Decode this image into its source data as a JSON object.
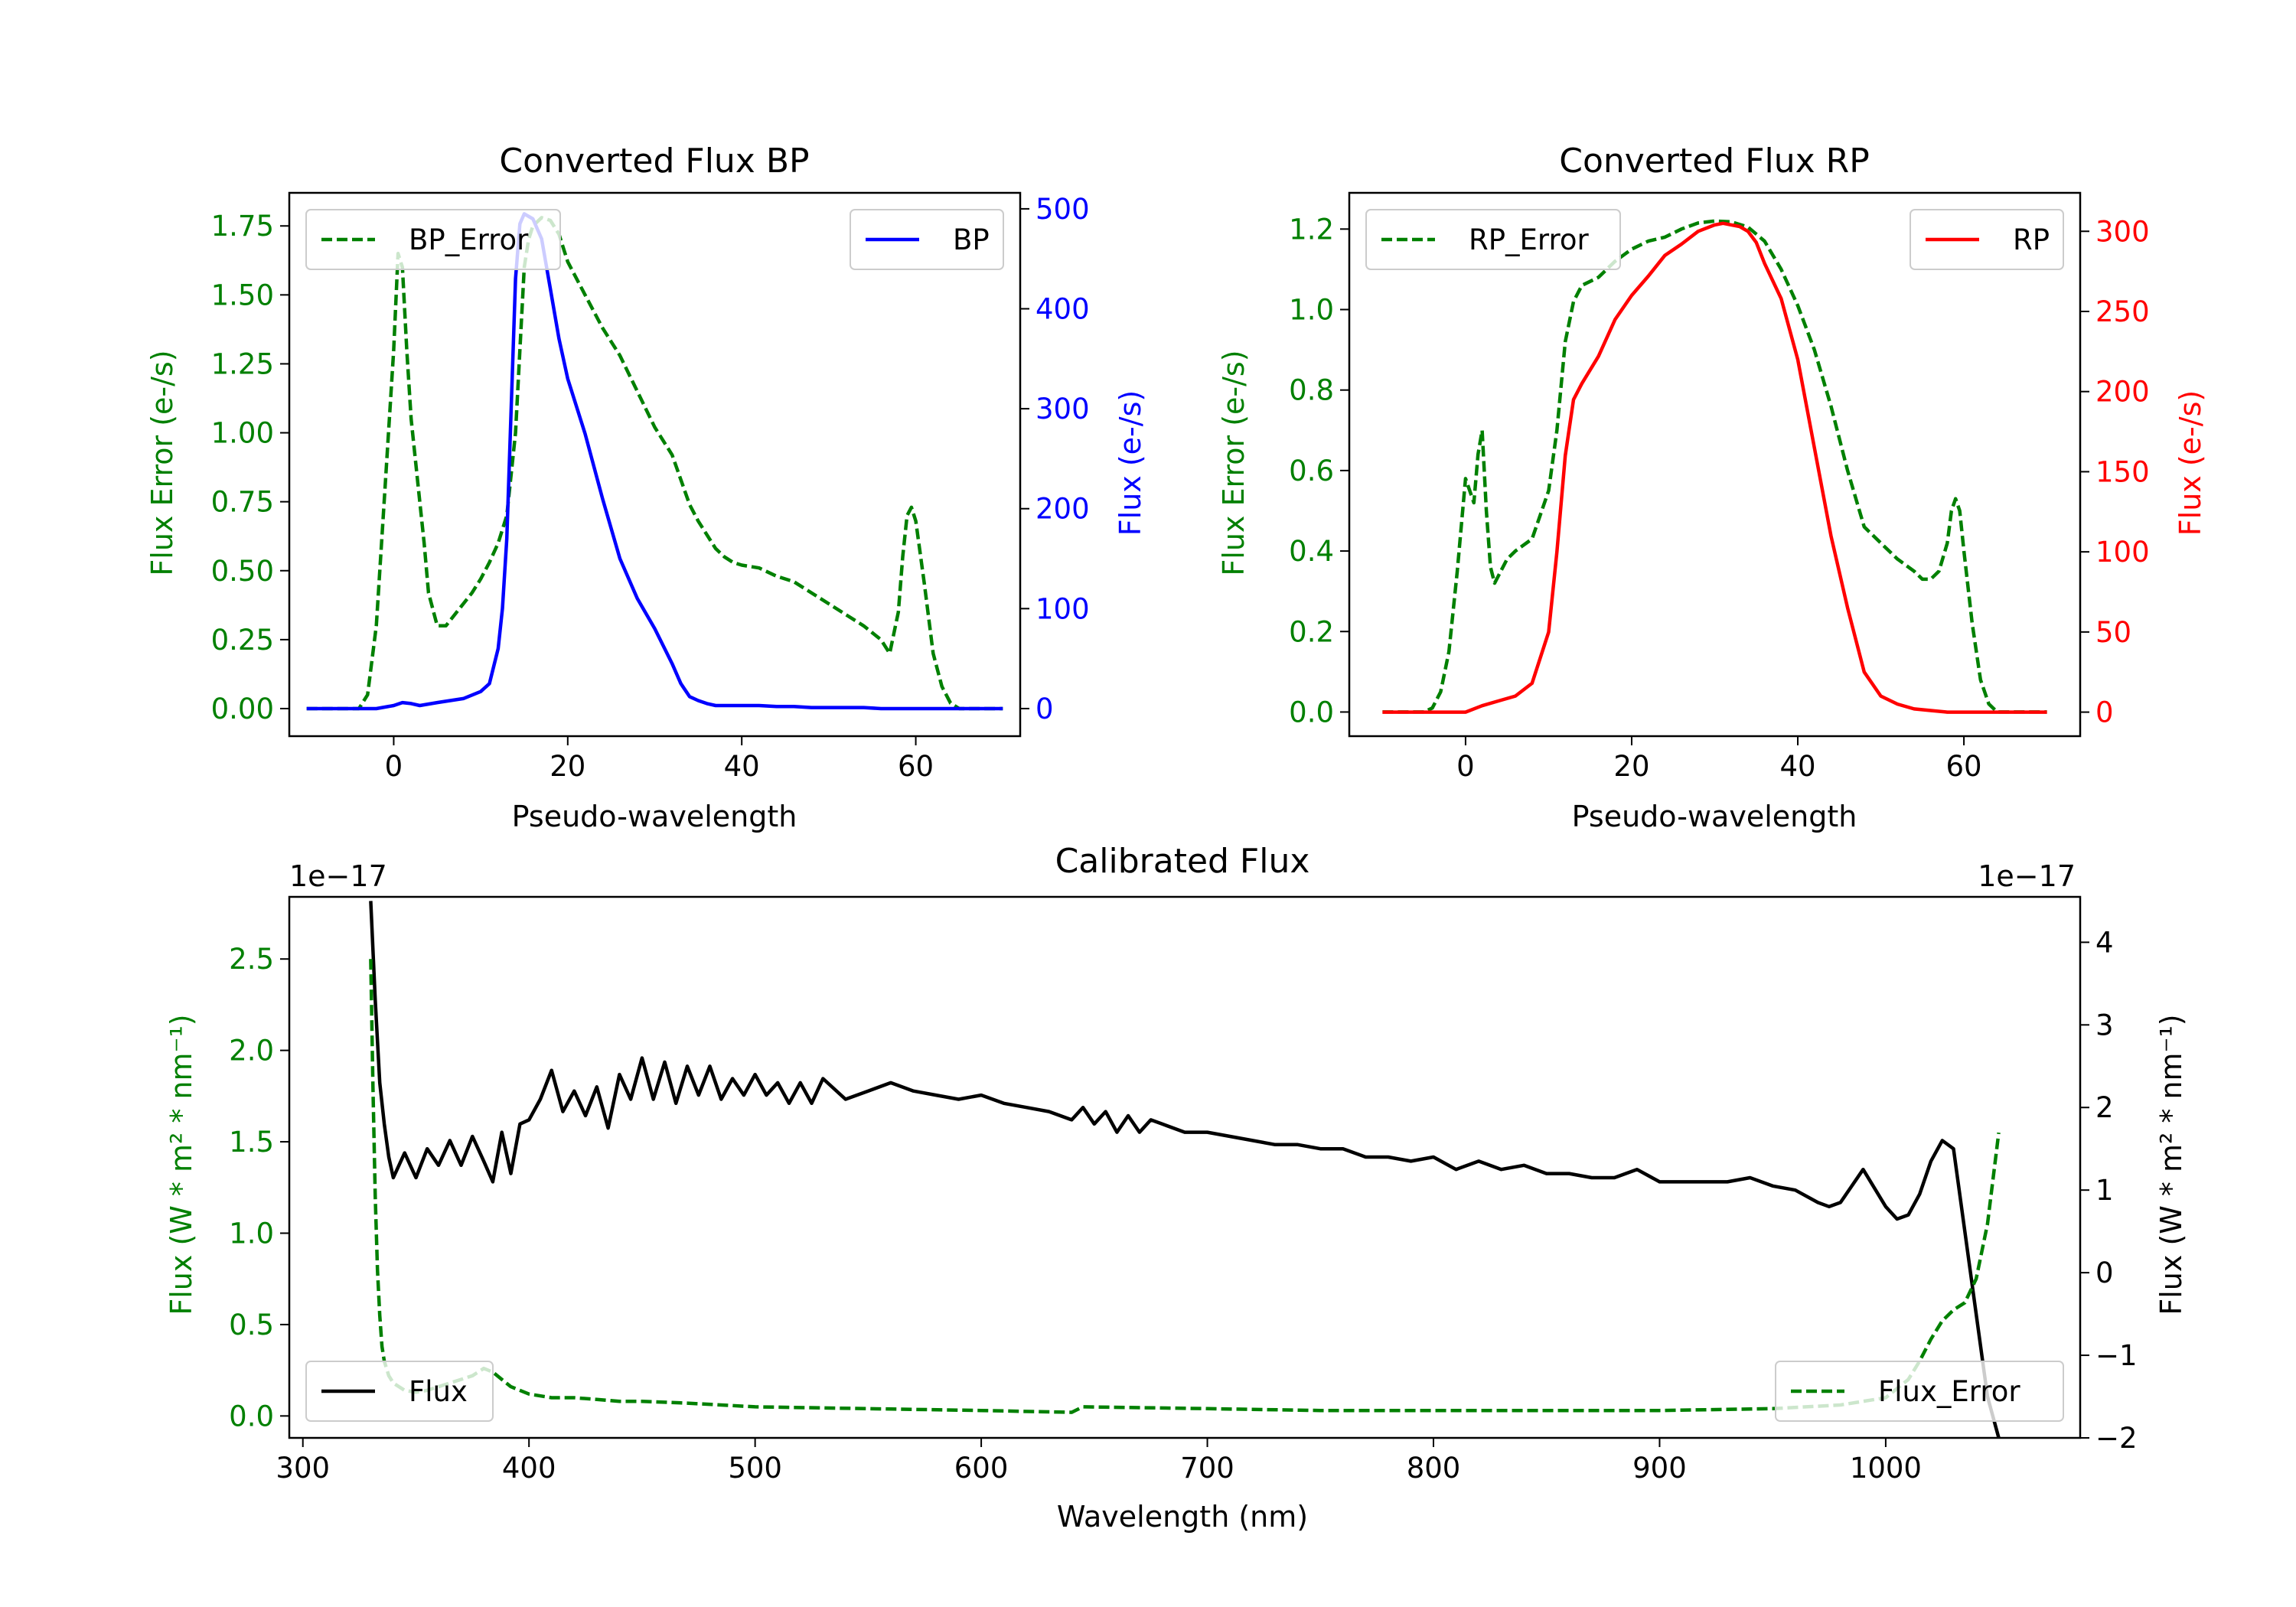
{
  "chart_data": [
    {
      "id": "bp",
      "type": "line",
      "title": "Converted Flux BP",
      "xlabel": "Pseudo-wavelength",
      "ylabel_left": "Flux Error (e-/s)",
      "ylabel_right": "Flux (e-/s)",
      "xlim": [
        -12,
        72
      ],
      "ylim_left": [
        -0.1,
        1.87
      ],
      "ylim_right": [
        -27.6,
        516
      ],
      "xticks": [
        0,
        20,
        40,
        60
      ],
      "yticks_left": [
        0.0,
        0.25,
        0.5,
        0.75,
        1.0,
        1.25,
        1.5,
        1.75
      ],
      "yticks_left_labels": [
        "0.00",
        "0.25",
        "0.50",
        "0.75",
        "1.00",
        "1.25",
        "1.50",
        "1.75"
      ],
      "yticks_right": [
        0,
        100,
        200,
        300,
        400,
        500
      ],
      "yticks_right_labels": [
        "0",
        "100",
        "200",
        "300",
        "400",
        "500"
      ],
      "legend_left": {
        "label": "BP_Error",
        "position": "upper-left"
      },
      "legend_right": {
        "label": "BP",
        "position": "upper-right"
      },
      "series": [
        {
          "name": "BP_Error",
          "axis": "left",
          "color": "#008000",
          "style": "dashed",
          "x": [
            -10,
            -6,
            -4,
            -3,
            -2,
            -1,
            0,
            0.5,
            1,
            1.5,
            2,
            3,
            3.5,
            4,
            5,
            6,
            7,
            8,
            9,
            10,
            11,
            12,
            13,
            14,
            14.5,
            15,
            15.5,
            16,
            17,
            18,
            19,
            20,
            22,
            24,
            26,
            28,
            30,
            32,
            34,
            35,
            36,
            37,
            38,
            39,
            40,
            42,
            44,
            46,
            48,
            50,
            52,
            54,
            56,
            57,
            58,
            58.5,
            59,
            59.5,
            60,
            61,
            62,
            63,
            64,
            65,
            66,
            70
          ],
          "y": [
            0.0,
            0.0,
            0.0,
            0.05,
            0.3,
            0.8,
            1.3,
            1.65,
            1.6,
            1.3,
            1.05,
            0.75,
            0.6,
            0.42,
            0.3,
            0.3,
            0.34,
            0.38,
            0.42,
            0.47,
            0.53,
            0.6,
            0.7,
            1.0,
            1.3,
            1.6,
            1.7,
            1.75,
            1.78,
            1.77,
            1.72,
            1.62,
            1.5,
            1.38,
            1.28,
            1.15,
            1.02,
            0.92,
            0.74,
            0.68,
            0.63,
            0.58,
            0.55,
            0.53,
            0.52,
            0.51,
            0.48,
            0.46,
            0.42,
            0.38,
            0.34,
            0.3,
            0.25,
            0.2,
            0.35,
            0.55,
            0.7,
            0.73,
            0.68,
            0.45,
            0.2,
            0.08,
            0.02,
            0.0,
            0.0,
            0.0
          ]
        },
        {
          "name": "BP",
          "axis": "right",
          "color": "#0000ff",
          "style": "solid",
          "x": [
            -10,
            -5,
            -2,
            0,
            1,
            2,
            3,
            5,
            8,
            10,
            11,
            12,
            12.5,
            13,
            13.5,
            14,
            14.5,
            15,
            16,
            17,
            18,
            19,
            20,
            22,
            24,
            26,
            28,
            30,
            32,
            33,
            34,
            35,
            36,
            37,
            38,
            40,
            42,
            44,
            46,
            48,
            50,
            52,
            54,
            56,
            58,
            60,
            62,
            64,
            66,
            68,
            70
          ],
          "y": [
            0,
            0,
            0,
            3,
            6,
            5,
            3,
            6,
            10,
            17,
            25,
            60,
            100,
            170,
            300,
            430,
            485,
            495,
            490,
            470,
            420,
            370,
            330,
            275,
            210,
            150,
            110,
            80,
            45,
            25,
            12,
            8,
            5,
            3,
            3,
            3,
            3,
            2,
            2,
            1,
            1,
            1,
            1,
            0,
            0,
            0,
            0,
            0,
            0,
            0,
            0
          ]
        }
      ]
    },
    {
      "id": "rp",
      "type": "line",
      "title": "Converted Flux RP",
      "xlabel": "Pseudo-wavelength",
      "ylabel_left": "Flux Error (e-/s)",
      "ylabel_right": "Flux (e-/s)",
      "xlim": [
        -14,
        74
      ],
      "ylim_left": [
        -0.06,
        1.29
      ],
      "ylim_right": [
        -15,
        324
      ],
      "xticks": [
        0,
        20,
        40,
        60
      ],
      "yticks_left": [
        0.0,
        0.2,
        0.4,
        0.6,
        0.8,
        1.0,
        1.2
      ],
      "yticks_left_labels": [
        "0.0",
        "0.2",
        "0.4",
        "0.6",
        "0.8",
        "1.0",
        "1.2"
      ],
      "yticks_right": [
        0,
        50,
        100,
        150,
        200,
        250,
        300
      ],
      "yticks_right_labels": [
        "0",
        "50",
        "100",
        "150",
        "200",
        "250",
        "300"
      ],
      "legend_left": {
        "label": "RP_Error",
        "position": "upper-left"
      },
      "legend_right": {
        "label": "RP",
        "position": "upper-right"
      },
      "series": [
        {
          "name": "RP_Error",
          "axis": "left",
          "color": "#008000",
          "style": "dashed",
          "x": [
            -10,
            -5,
            -4,
            -3,
            -2,
            -1,
            0,
            0.5,
            1,
            1.5,
            2,
            2.5,
            3,
            3.5,
            4,
            5,
            6,
            8,
            10,
            11,
            12,
            13,
            14,
            16,
            18,
            20,
            22,
            24,
            26,
            28,
            30,
            32,
            34,
            36,
            38,
            40,
            42,
            44,
            46,
            48,
            50,
            52,
            54,
            55,
            56,
            57,
            58,
            58.5,
            59,
            59.5,
            60,
            61,
            62,
            63,
            64,
            66,
            70
          ],
          "y": [
            0.0,
            0.0,
            0.01,
            0.05,
            0.15,
            0.35,
            0.58,
            0.55,
            0.52,
            0.64,
            0.7,
            0.5,
            0.36,
            0.32,
            0.34,
            0.38,
            0.4,
            0.43,
            0.55,
            0.7,
            0.92,
            1.02,
            1.06,
            1.08,
            1.12,
            1.15,
            1.17,
            1.18,
            1.2,
            1.215,
            1.22,
            1.218,
            1.205,
            1.17,
            1.1,
            1.01,
            0.9,
            0.76,
            0.6,
            0.46,
            0.42,
            0.38,
            0.35,
            0.33,
            0.33,
            0.35,
            0.42,
            0.5,
            0.53,
            0.5,
            0.4,
            0.22,
            0.08,
            0.02,
            0.0,
            0.0,
            0.0
          ]
        },
        {
          "name": "RP",
          "axis": "right",
          "color": "#ff0000",
          "style": "solid",
          "x": [
            -10,
            -5,
            0,
            2,
            4,
            6,
            8,
            10,
            11,
            12,
            13,
            14,
            16,
            18,
            20,
            22,
            24,
            26,
            28,
            30,
            31,
            32,
            33,
            34,
            35,
            36,
            38,
            40,
            42,
            44,
            46,
            48,
            50,
            52,
            54,
            56,
            58,
            60,
            62,
            64,
            66,
            70
          ],
          "y": [
            0,
            0,
            0,
            4,
            7,
            10,
            18,
            50,
            100,
            160,
            195,
            205,
            222,
            245,
            260,
            272,
            285,
            292,
            300,
            304,
            305,
            304,
            303,
            300,
            293,
            280,
            258,
            220,
            165,
            110,
            65,
            25,
            10,
            5,
            2,
            1,
            0,
            0,
            0,
            0,
            0,
            0
          ]
        }
      ]
    },
    {
      "id": "calibrated",
      "type": "line",
      "title": "Calibrated Flux",
      "xlabel": "Wavelength (nm)",
      "ylabel_left": "Flux (W * m² * nm⁻¹)",
      "ylabel_right": "Flux (W * m² * nm⁻¹)",
      "offset_left": "1e−17",
      "offset_right": "1e−17",
      "xlim": [
        294,
        1086
      ],
      "ylim_left": [
        -0.12,
        2.84
      ],
      "ylim_right": [
        -2.0,
        4.55
      ],
      "xticks": [
        300,
        400,
        500,
        600,
        700,
        800,
        900,
        1000
      ],
      "yticks_left": [
        0.0,
        0.5,
        1.0,
        1.5,
        2.0,
        2.5
      ],
      "yticks_left_labels": [
        "0.0",
        "0.5",
        "1.0",
        "1.5",
        "2.0",
        "2.5"
      ],
      "yticks_right": [
        -2,
        -1,
        0,
        1,
        2,
        3,
        4
      ],
      "yticks_right_labels": [
        "−2",
        "−1",
        "0",
        "1",
        "2",
        "3",
        "4"
      ],
      "legend_left": {
        "label": "Flux",
        "position": "lower-left"
      },
      "legend_right": {
        "label": "Flux_Error",
        "position": "lower-right"
      },
      "series": [
        {
          "name": "Flux",
          "axis": "right",
          "color": "#000000",
          "style": "solid",
          "x": [
            330,
            332,
            334,
            336,
            338,
            340,
            345,
            350,
            355,
            360,
            365,
            370,
            375,
            380,
            384,
            388,
            392,
            396,
            400,
            405,
            410,
            415,
            420,
            425,
            430,
            435,
            440,
            445,
            450,
            455,
            460,
            465,
            470,
            475,
            480,
            485,
            490,
            495,
            500,
            505,
            510,
            515,
            520,
            525,
            530,
            540,
            550,
            560,
            570,
            580,
            590,
            600,
            610,
            620,
            630,
            640,
            645,
            650,
            655,
            660,
            665,
            670,
            675,
            680,
            690,
            700,
            710,
            720,
            730,
            740,
            750,
            760,
            770,
            780,
            790,
            800,
            810,
            820,
            830,
            840,
            850,
            860,
            870,
            880,
            890,
            900,
            910,
            920,
            930,
            940,
            950,
            960,
            970,
            975,
            980,
            990,
            1000,
            1005,
            1010,
            1015,
            1020,
            1025,
            1030,
            1035,
            1040,
            1045,
            1050
          ],
          "y": [
            4.5,
            3.3,
            2.3,
            1.8,
            1.4,
            1.15,
            1.45,
            1.15,
            1.5,
            1.3,
            1.6,
            1.3,
            1.65,
            1.35,
            1.1,
            1.7,
            1.2,
            1.8,
            1.85,
            2.1,
            2.45,
            1.95,
            2.2,
            1.9,
            2.25,
            1.75,
            2.4,
            2.1,
            2.6,
            2.1,
            2.55,
            2.05,
            2.5,
            2.15,
            2.5,
            2.1,
            2.35,
            2.15,
            2.4,
            2.15,
            2.3,
            2.05,
            2.3,
            2.05,
            2.35,
            2.1,
            2.2,
            2.3,
            2.2,
            2.15,
            2.1,
            2.15,
            2.05,
            2.0,
            1.95,
            1.85,
            2.0,
            1.8,
            1.95,
            1.7,
            1.9,
            1.7,
            1.85,
            1.8,
            1.7,
            1.7,
            1.65,
            1.6,
            1.55,
            1.55,
            1.5,
            1.5,
            1.4,
            1.4,
            1.35,
            1.4,
            1.25,
            1.35,
            1.25,
            1.3,
            1.2,
            1.2,
            1.15,
            1.15,
            1.25,
            1.1,
            1.1,
            1.1,
            1.1,
            1.15,
            1.05,
            1.0,
            0.85,
            0.8,
            0.85,
            1.25,
            0.8,
            0.65,
            0.7,
            0.95,
            1.35,
            1.6,
            1.5,
            0.5,
            -0.5,
            -1.5,
            -2.0
          ]
        },
        {
          "name": "Flux_Error",
          "axis": "left",
          "color": "#008000",
          "style": "dashed",
          "x": [
            330,
            331,
            332,
            333,
            334,
            335,
            336,
            338,
            340,
            345,
            350,
            355,
            360,
            365,
            370,
            375,
            380,
            384,
            388,
            392,
            396,
            400,
            410,
            420,
            430,
            440,
            450,
            470,
            500,
            550,
            600,
            640,
            645,
            700,
            750,
            800,
            850,
            900,
            950,
            980,
            1000,
            1010,
            1015,
            1020,
            1025,
            1030,
            1035,
            1040,
            1045,
            1050
          ],
          "y": [
            2.5,
            1.8,
            1.2,
            0.8,
            0.55,
            0.38,
            0.3,
            0.22,
            0.18,
            0.14,
            0.13,
            0.14,
            0.16,
            0.18,
            0.2,
            0.22,
            0.26,
            0.24,
            0.2,
            0.16,
            0.14,
            0.12,
            0.1,
            0.1,
            0.09,
            0.08,
            0.08,
            0.07,
            0.05,
            0.04,
            0.03,
            0.02,
            0.05,
            0.04,
            0.03,
            0.03,
            0.03,
            0.03,
            0.04,
            0.06,
            0.1,
            0.2,
            0.3,
            0.42,
            0.52,
            0.58,
            0.62,
            0.75,
            1.05,
            1.55
          ]
        }
      ]
    }
  ]
}
